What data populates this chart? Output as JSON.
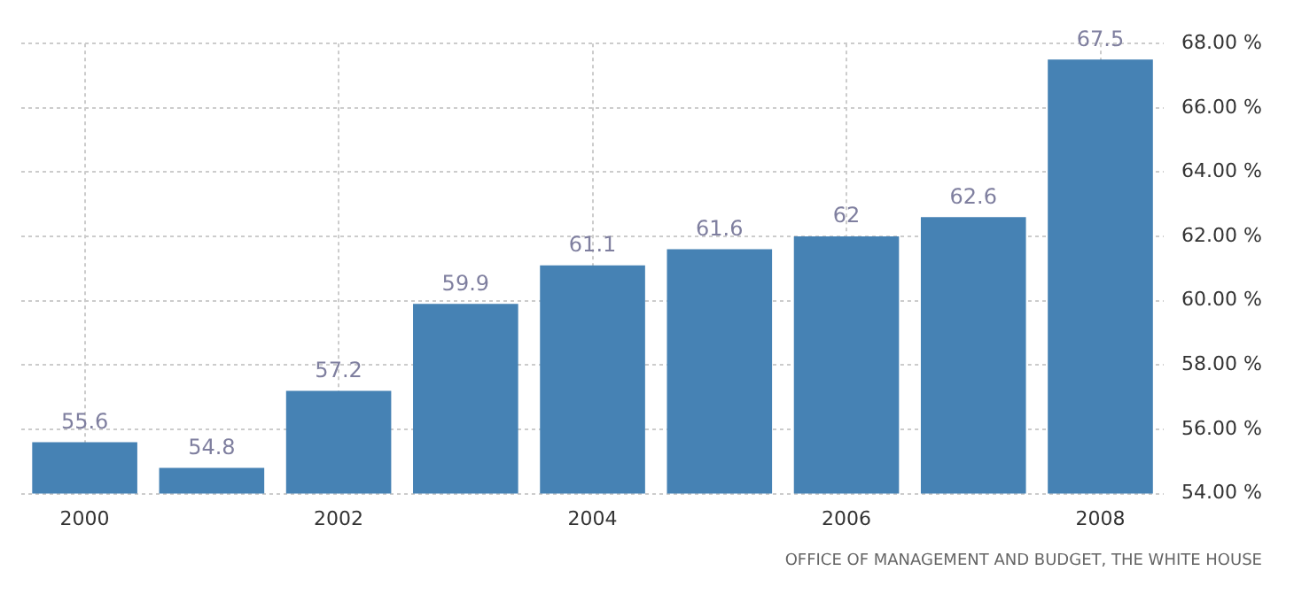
{
  "chart_data": {
    "type": "bar",
    "categories": [
      "2000",
      null,
      "2002",
      null,
      "2004",
      null,
      "2006",
      null,
      "2008"
    ],
    "values": [
      55.6,
      54.8,
      57.2,
      59.9,
      61.1,
      61.6,
      62,
      62.6,
      67.5
    ],
    "color": "#4682b4",
    "ylim": [
      54,
      68
    ],
    "yticks": [
      {
        "value": 54,
        "label": "54.00 %"
      },
      {
        "value": 56,
        "label": "56.00 %"
      },
      {
        "value": 58,
        "label": "58.00 %"
      },
      {
        "value": 60,
        "label": "60.00 %"
      },
      {
        "value": 62,
        "label": "62.00 %"
      },
      {
        "value": 64,
        "label": "64.00 %"
      },
      {
        "value": 66,
        "label": "66.00 %"
      },
      {
        "value": 68,
        "label": "68.00 %"
      }
    ],
    "grid": true,
    "data_labels": true,
    "annotations": [
      "OFFICE OF MANAGEMENT AND BUDGET, THE WHITE HOUSE"
    ]
  }
}
